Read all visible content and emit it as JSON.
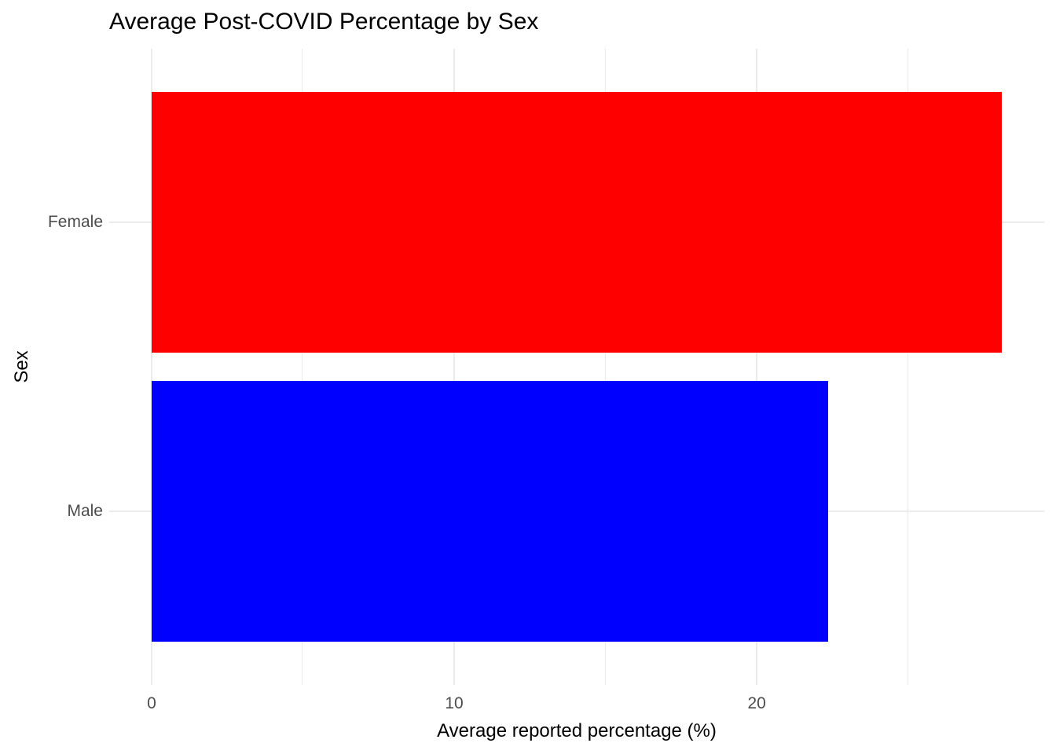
{
  "chart_data": {
    "type": "bar",
    "orientation": "horizontal",
    "title": "Average Post-COVID Percentage by Sex",
    "xlabel": "Average reported percentage (%)",
    "ylabel": "Sex",
    "categories": [
      "Female",
      "Male"
    ],
    "values": [
      28.1,
      22.35
    ],
    "bar_colors": [
      "#FF0000",
      "#0000FF"
    ],
    "bar_width_fraction": 0.9,
    "xlim": [
      -1.4,
      29.5
    ],
    "x_major_ticks": [
      0,
      10,
      20
    ],
    "x_minor_ticks": [
      5,
      15,
      25
    ],
    "grid": true,
    "legend": "none",
    "colors": {
      "background": "#FFFFFF",
      "grid": "#EBEBEB",
      "tick_label": "#4D4D4D",
      "title": "#000000",
      "axis_title": "#000000"
    }
  }
}
